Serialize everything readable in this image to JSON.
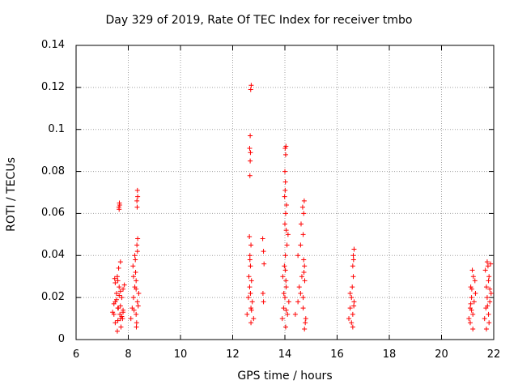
{
  "chart_data": {
    "type": "scatter",
    "title": "Day 329 of 2019, Rate Of TEC Index for receiver tmbo",
    "xlabel": "GPS time / hours",
    "ylabel": "ROTI / TECUs",
    "xlim": [
      6,
      22
    ],
    "ylim": [
      0,
      0.14
    ],
    "xticks": [
      "6",
      "8",
      "10",
      "12",
      "14",
      "16",
      "18",
      "20",
      "22"
    ],
    "yticks": [
      "0",
      "0.02",
      "0.04",
      "0.06",
      "0.08",
      "0.1",
      "0.12",
      "0.14"
    ],
    "grid": true,
    "marker": "+",
    "color": "#ff0000",
    "series": [
      {
        "name": "ROTI",
        "x": [
          7.45,
          7.5,
          7.55,
          7.6,
          7.65,
          7.7,
          7.75,
          7.8,
          7.5,
          7.6,
          7.7,
          7.8,
          7.4,
          7.55,
          7.65,
          7.75,
          7.85,
          7.45,
          7.6,
          7.7,
          7.8,
          7.5,
          7.62,
          7.72,
          7.58,
          7.68,
          7.48,
          7.78,
          7.63,
          7.64,
          7.66,
          7.67,
          7.65,
          7.7,
          7.58,
          8.1,
          8.15,
          8.2,
          8.25,
          8.3,
          8.35,
          8.4,
          8.2,
          8.3,
          8.22,
          8.32,
          8.18,
          8.28,
          8.38,
          8.25,
          8.33,
          8.27,
          8.35,
          8.36,
          8.34,
          8.33,
          8.36,
          8.35,
          8.3,
          8.31,
          12.55,
          12.6,
          12.65,
          12.7,
          12.75,
          12.8,
          12.62,
          12.68,
          12.72,
          12.66,
          12.7,
          12.64,
          12.68,
          12.7,
          12.66,
          12.67,
          12.68,
          12.65,
          12.67,
          12.69,
          12.71,
          12.66,
          12.72,
          13.15,
          13.18,
          13.2,
          13.16,
          13.18,
          13.9,
          13.95,
          14.0,
          14.05,
          14.1,
          14.15,
          13.92,
          13.98,
          14.02,
          14.08,
          14.12,
          13.96,
          14.04,
          14.0,
          14.03,
          14.06,
          13.99,
          14.01,
          14.05,
          14.02,
          14.0,
          14.03,
          14.04,
          14.01,
          14.02,
          14.03,
          14.05,
          14.4,
          14.5,
          14.6,
          14.7,
          14.8,
          14.55,
          14.65,
          14.75,
          14.5,
          14.6,
          14.7,
          14.62,
          14.72,
          14.68,
          14.74,
          14.7,
          14.76,
          14.72,
          14.78,
          14.73,
          14.75,
          16.45,
          16.5,
          16.55,
          16.6,
          16.65,
          16.5,
          16.58,
          16.62,
          16.55,
          16.6,
          16.63,
          16.6,
          16.62,
          16.65,
          16.64,
          21.05,
          21.1,
          21.15,
          21.2,
          21.25,
          21.3,
          21.12,
          21.22,
          21.18,
          21.28,
          21.1,
          21.15,
          21.2,
          21.12,
          21.16,
          21.65,
          21.7,
          21.75,
          21.8,
          21.85,
          21.9,
          21.72,
          21.82,
          21.68,
          21.78,
          21.75,
          21.8,
          21.82,
          21.72,
          21.76,
          21.85,
          21.88
        ],
        "y": [
          0.012,
          0.018,
          0.022,
          0.015,
          0.025,
          0.01,
          0.02,
          0.014,
          0.008,
          0.028,
          0.016,
          0.024,
          0.013,
          0.019,
          0.021,
          0.011,
          0.026,
          0.017,
          0.009,
          0.023,
          0.013,
          0.027,
          0.015,
          0.006,
          0.03,
          0.012,
          0.029,
          0.01,
          0.034,
          0.063,
          0.065,
          0.064,
          0.062,
          0.037,
          0.004,
          0.01,
          0.015,
          0.02,
          0.025,
          0.012,
          0.018,
          0.022,
          0.03,
          0.028,
          0.014,
          0.008,
          0.035,
          0.032,
          0.016,
          0.04,
          0.045,
          0.038,
          0.042,
          0.048,
          0.063,
          0.066,
          0.068,
          0.071,
          0.024,
          0.006,
          0.012,
          0.02,
          0.025,
          0.015,
          0.018,
          0.01,
          0.03,
          0.035,
          0.028,
          0.04,
          0.045,
          0.049,
          0.022,
          0.008,
          0.078,
          0.085,
          0.089,
          0.091,
          0.097,
          0.119,
          0.121,
          0.038,
          0.014,
          0.048,
          0.042,
          0.036,
          0.022,
          0.018,
          0.01,
          0.015,
          0.02,
          0.025,
          0.012,
          0.018,
          0.03,
          0.035,
          0.04,
          0.045,
          0.05,
          0.022,
          0.028,
          0.055,
          0.06,
          0.064,
          0.068,
          0.071,
          0.052,
          0.075,
          0.08,
          0.088,
          0.092,
          0.091,
          0.033,
          0.006,
          0.014,
          0.012,
          0.018,
          0.022,
          0.015,
          0.01,
          0.025,
          0.03,
          0.035,
          0.04,
          0.045,
          0.05,
          0.055,
          0.06,
          0.063,
          0.066,
          0.02,
          0.028,
          0.038,
          0.008,
          0.032,
          0.005,
          0.01,
          0.015,
          0.02,
          0.012,
          0.018,
          0.022,
          0.025,
          0.03,
          0.008,
          0.035,
          0.038,
          0.006,
          0.04,
          0.043,
          0.016,
          0.01,
          0.015,
          0.02,
          0.012,
          0.018,
          0.022,
          0.025,
          0.03,
          0.033,
          0.028,
          0.008,
          0.014,
          0.005,
          0.017,
          0.024,
          0.01,
          0.015,
          0.02,
          0.012,
          0.018,
          0.022,
          0.025,
          0.03,
          0.033,
          0.035,
          0.037,
          0.028,
          0.008,
          0.005,
          0.016,
          0.024,
          0.036
        ]
      }
    ]
  }
}
